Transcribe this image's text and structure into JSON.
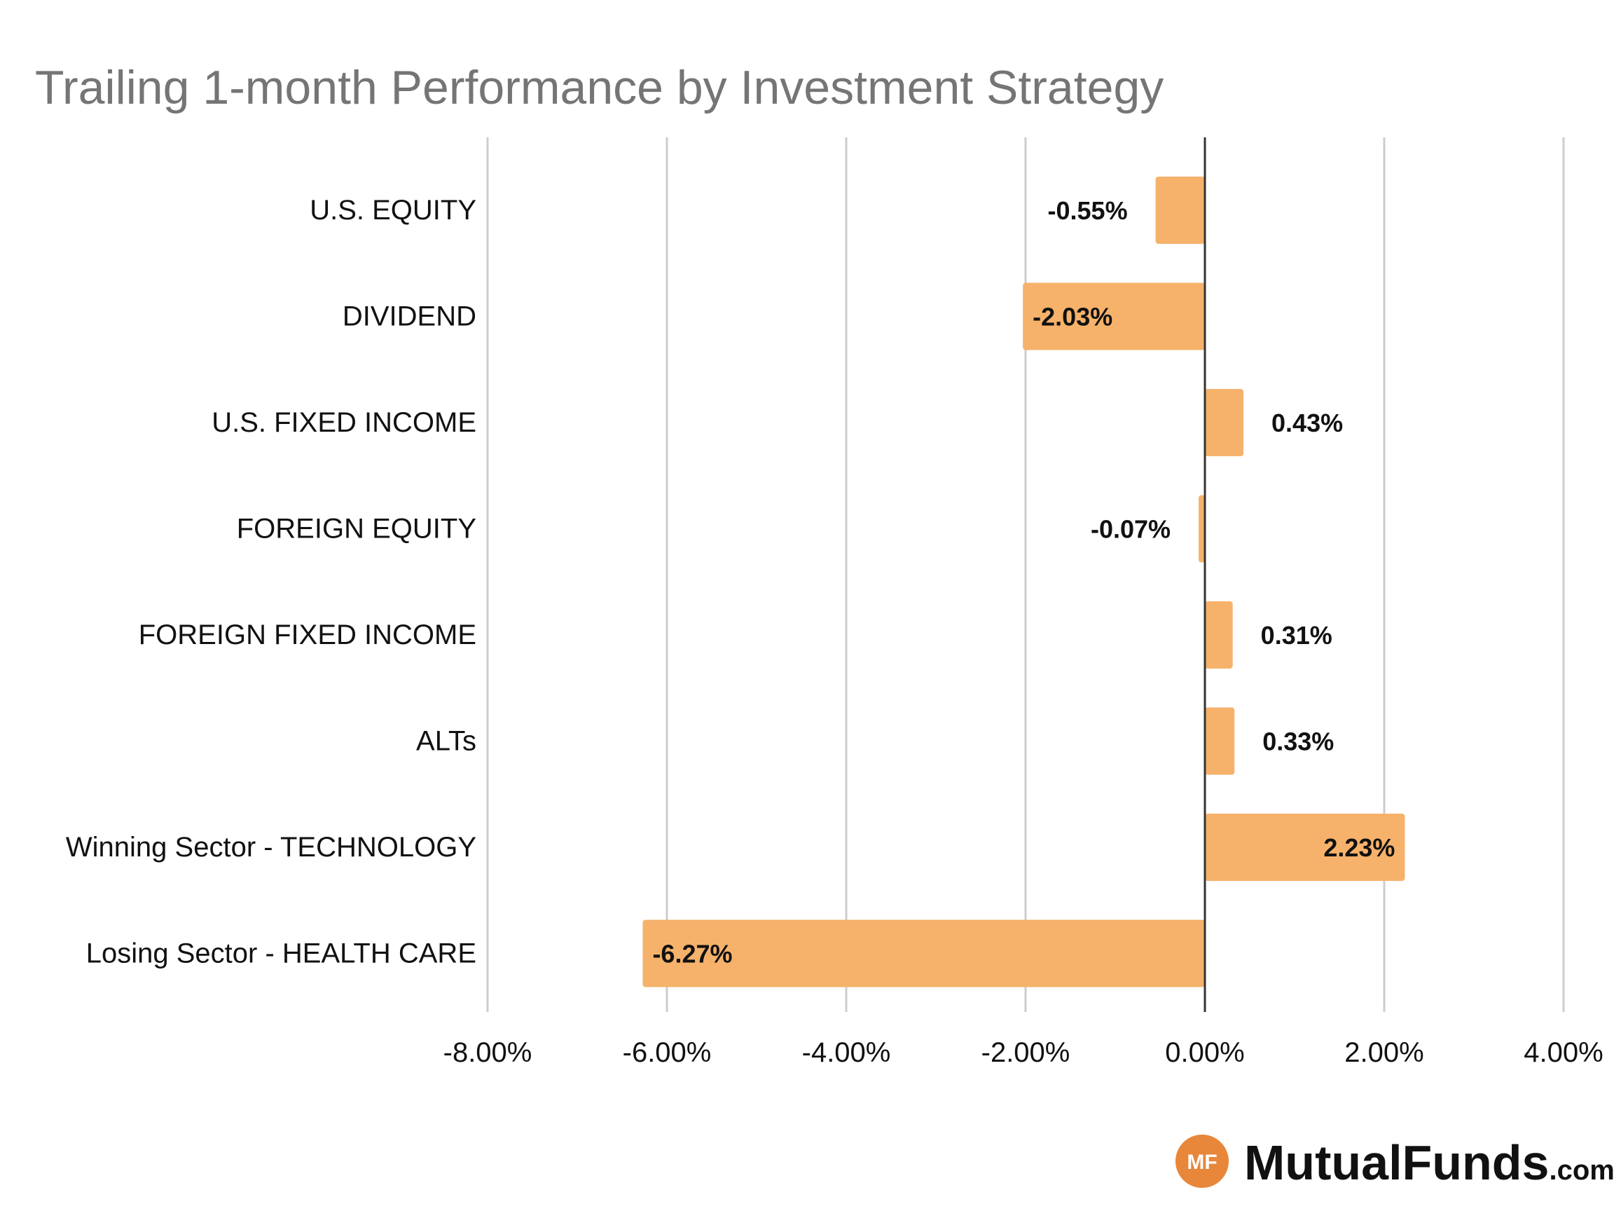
{
  "chart_data": {
    "type": "bar",
    "orientation": "horizontal",
    "title": "Trailing 1-month Performance by Investment Strategy",
    "categories": [
      "U.S. EQUITY",
      "DIVIDEND",
      "U.S. FIXED INCOME",
      "FOREIGN EQUITY",
      "FOREIGN FIXED INCOME",
      "ALTs",
      "Winning Sector - TECHNOLOGY",
      "Losing Sector - HEALTH CARE"
    ],
    "values": [
      -0.55,
      -2.03,
      0.43,
      -0.07,
      0.31,
      0.33,
      2.23,
      -6.27
    ],
    "data_labels": [
      "-0.55%",
      "-2.03%",
      "0.43%",
      "-0.07%",
      "0.31%",
      "0.33%",
      "2.23%",
      "-6.27%"
    ],
    "xlim": [
      -8,
      4
    ],
    "x_ticks": [
      -8,
      -6,
      -4,
      -2,
      0,
      2,
      4
    ],
    "x_tick_labels": [
      "-8.00%",
      "-6.00%",
      "-4.00%",
      "-2.00%",
      "0.00%",
      "2.00%",
      "4.00%"
    ],
    "xlabel": "",
    "ylabel": "",
    "grid": "vertical",
    "legend": "none",
    "colors": {
      "bar": "#F6B26B",
      "grid": "#CCCCCC",
      "zero_line": "#333333",
      "title": "#757575",
      "text": "#111111"
    }
  },
  "branding": {
    "logo_badge": "MF",
    "logo_name": "MutualFunds",
    "logo_suffix": ".com",
    "badge_color": "#E8873A"
  }
}
